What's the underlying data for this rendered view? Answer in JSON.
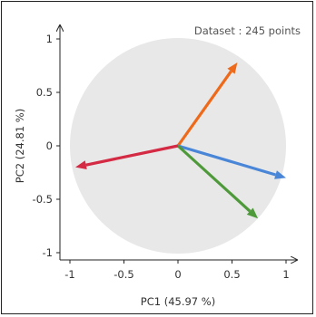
{
  "chart_data": {
    "type": "biplot",
    "annotation": "Dataset : 245 points",
    "xlabel": "PC1 (45.97 %)",
    "ylabel": "PC2 (24.81 %)",
    "xlim": [
      -1.1,
      1.1
    ],
    "ylim": [
      -1.1,
      1.1
    ],
    "xticks": [
      -1,
      -0.5,
      0,
      0.5,
      1
    ],
    "yticks": [
      -1,
      -0.5,
      0,
      0.5,
      1
    ],
    "xtick_labels": [
      "-1",
      "-0.5",
      "0",
      "0.5",
      "1"
    ],
    "ytick_labels": [
      "-1",
      "-0.5",
      "0",
      "0.5",
      "1"
    ],
    "circle_radius": 1,
    "circle_color": "#e8e8e8",
    "vectors": [
      {
        "x": 0.55,
        "y": 0.78,
        "color": "#ee6a1a"
      },
      {
        "x": 1.0,
        "y": -0.3,
        "color": "#4a86d8"
      },
      {
        "x": 0.74,
        "y": -0.68,
        "color": "#4e9a3a"
      },
      {
        "x": -0.95,
        "y": -0.2,
        "color": "#d42a44"
      }
    ]
  }
}
